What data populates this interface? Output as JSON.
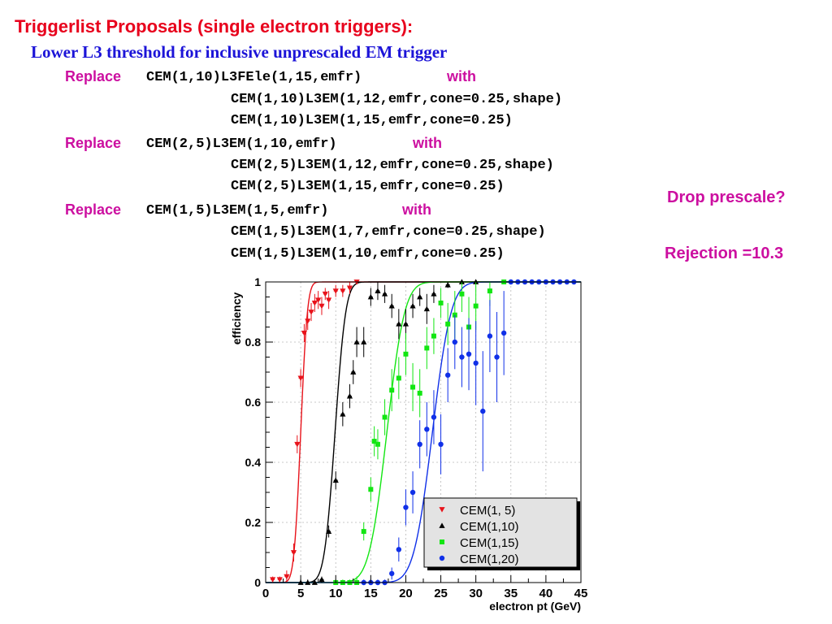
{
  "slide": {
    "title": "Triggerlist Proposals (single electron triggers):",
    "subtitle": "Lower L3 threshold for inclusive unprescaled EM trigger",
    "replace_word": "Replace",
    "with_word": "with",
    "replacements": [
      {
        "from": "CEM(1,10)L3FEle(1,15,emfr)",
        "to": [
          "CEM(1,10)L3EM(1,12,emfr,cone=0.25,shape)",
          "CEM(1,10)L3EM(1,15,emfr,cone=0.25)"
        ]
      },
      {
        "from": "CEM(2,5)L3EM(1,10,emfr)",
        "to": [
          "CEM(2,5)L3EM(1,12,emfr,cone=0.25,shape)",
          "CEM(2,5)L3EM(1,15,emfr,cone=0.25)"
        ]
      },
      {
        "from": "CEM(1,5)L3EM(1,5,emfr)",
        "to": [
          "CEM(1,5)L3EM(1,7,emfr,cone=0.25,shape)",
          "CEM(1,5)L3EM(1,10,emfr,cone=0.25)"
        ]
      }
    ],
    "note_drop": "Drop prescale?",
    "note_rejection": "Rejection =10.3"
  },
  "chart_data": {
    "type": "scatter",
    "xlabel": "electron pt (GeV)",
    "ylabel": "efficiency",
    "xlim": [
      0,
      45
    ],
    "ylim": [
      0,
      1
    ],
    "xticks": [
      0,
      5,
      10,
      15,
      20,
      25,
      30,
      35,
      40,
      45
    ],
    "yticks": [
      0,
      0.2,
      0.4,
      0.6,
      0.8,
      1
    ],
    "grid": true,
    "legend_position": "bottom-right",
    "series": [
      {
        "name": "CEM(1,  5)",
        "color": "#e8121a",
        "marker": "triangle-down",
        "fit": {
          "mid": 5.0,
          "width": 0.75
        },
        "x": [
          1,
          2,
          3,
          4,
          4.5,
          5,
          5.5,
          6,
          6.5,
          7,
          7.5,
          8,
          8.5,
          9,
          10,
          11,
          12,
          13
        ],
        "y": [
          0.01,
          0.01,
          0.02,
          0.1,
          0.46,
          0.68,
          0.83,
          0.87,
          0.9,
          0.93,
          0.94,
          0.92,
          0.96,
          0.94,
          0.97,
          0.97,
          0.98,
          1.0
        ],
        "err": [
          0.01,
          0.01,
          0.02,
          0.03,
          0.03,
          0.03,
          0.03,
          0.03,
          0.03,
          0.03,
          0.03,
          0.03,
          0.02,
          0.03,
          0.02,
          0.02,
          0.02,
          0.0
        ]
      },
      {
        "name": "CEM(1,10)",
        "color": "#000000",
        "marker": "triangle-up",
        "fit": {
          "mid": 9.9,
          "width": 1.2
        },
        "x": [
          5,
          6,
          7,
          8,
          9,
          10,
          11,
          12,
          12.5,
          13,
          14,
          15,
          16,
          17,
          18,
          19,
          20,
          21,
          22,
          23,
          24,
          26,
          28,
          30
        ],
        "y": [
          0.0,
          0.0,
          0.0,
          0.01,
          0.17,
          0.34,
          0.56,
          0.62,
          0.7,
          0.8,
          0.8,
          0.95,
          0.97,
          0.96,
          0.92,
          0.86,
          0.86,
          0.92,
          0.95,
          0.91,
          0.96,
          0.99,
          1.0,
          1.0
        ],
        "err": [
          0.01,
          0.01,
          0.01,
          0.01,
          0.02,
          0.03,
          0.04,
          0.04,
          0.04,
          0.05,
          0.05,
          0.03,
          0.03,
          0.03,
          0.04,
          0.05,
          0.05,
          0.04,
          0.03,
          0.05,
          0.03,
          0.01,
          0.0,
          0.0
        ]
      },
      {
        "name": "CEM(1,15)",
        "color": "#12e612",
        "marker": "square",
        "fit": {
          "mid": 17.3,
          "width": 2.0
        },
        "x": [
          10,
          11,
          12,
          13,
          14,
          15,
          15.5,
          16,
          17,
          18,
          19,
          20,
          21,
          22,
          23,
          24,
          25,
          26,
          27,
          28,
          29,
          30,
          32,
          34
        ],
        "y": [
          0.0,
          0.0,
          0.0,
          0.0,
          0.17,
          0.31,
          0.47,
          0.46,
          0.55,
          0.64,
          0.68,
          0.76,
          0.65,
          0.63,
          0.78,
          0.82,
          0.93,
          0.86,
          0.89,
          0.96,
          0.85,
          0.92,
          0.97,
          1.0
        ],
        "err": [
          0.01,
          0.01,
          0.01,
          0.02,
          0.03,
          0.04,
          0.05,
          0.05,
          0.06,
          0.07,
          0.07,
          0.07,
          0.08,
          0.08,
          0.07,
          0.06,
          0.05,
          0.07,
          0.08,
          0.06,
          0.1,
          0.08,
          0.05,
          0.0
        ]
      },
      {
        "name": "CEM(1,20)",
        "color": "#1030e8",
        "marker": "circle",
        "fit": {
          "mid": 23.8,
          "width": 2.1
        },
        "x": [
          14,
          15,
          16,
          17,
          18,
          19,
          20,
          21,
          22,
          23,
          24,
          25,
          26,
          27,
          28,
          29,
          30,
          31,
          32,
          33,
          34,
          35,
          36,
          37,
          38,
          39,
          40,
          41,
          42,
          43,
          44
        ],
        "y": [
          0.0,
          0.0,
          0.0,
          0.0,
          0.03,
          0.11,
          0.25,
          0.3,
          0.46,
          0.51,
          0.55,
          0.46,
          0.69,
          0.8,
          0.75,
          0.76,
          0.73,
          0.57,
          0.82,
          0.75,
          0.83,
          1.0,
          1.0,
          1.0,
          1.0,
          1.0,
          1.0,
          1.0,
          1.0,
          1.0,
          1.0
        ],
        "err": [
          0.01,
          0.01,
          0.01,
          0.01,
          0.02,
          0.04,
          0.06,
          0.07,
          0.08,
          0.09,
          0.09,
          0.1,
          0.09,
          0.09,
          0.1,
          0.12,
          0.14,
          0.2,
          0.12,
          0.15,
          0.14,
          0.0,
          0.0,
          0.0,
          0.0,
          0.0,
          0.0,
          0.0,
          0.0,
          0.0,
          0.0
        ]
      }
    ]
  }
}
